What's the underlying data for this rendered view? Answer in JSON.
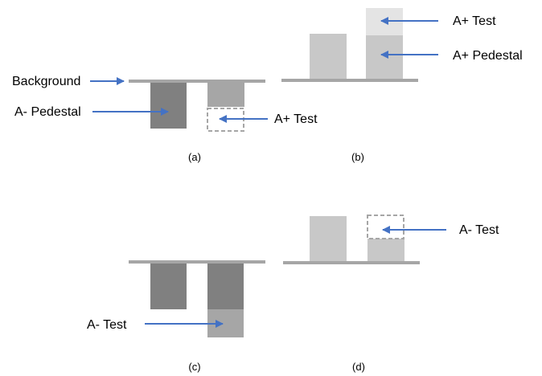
{
  "colors": {
    "baseline": "#a6a6a6",
    "dark_block": "#808080",
    "mid_block": "#a6a6a6",
    "light_block": "#c8c8c8",
    "lighter_block": "#e4e4e4",
    "dashed_outline": "#a6a6a6",
    "arrow": "#4472c4",
    "text": "#000000"
  },
  "panels": [
    {
      "caption": "(a)",
      "labels": {
        "background": "Background",
        "pedestal": "A- Pedestal",
        "test": "A+ Test"
      }
    },
    {
      "caption": "(b)",
      "labels": {
        "test": "A+ Test",
        "pedestal": "A+ Pedestal"
      }
    },
    {
      "caption": "(c)",
      "labels": {
        "test": "A- Test"
      }
    },
    {
      "caption": "(d)",
      "labels": {
        "test": "A- Test"
      }
    }
  ]
}
